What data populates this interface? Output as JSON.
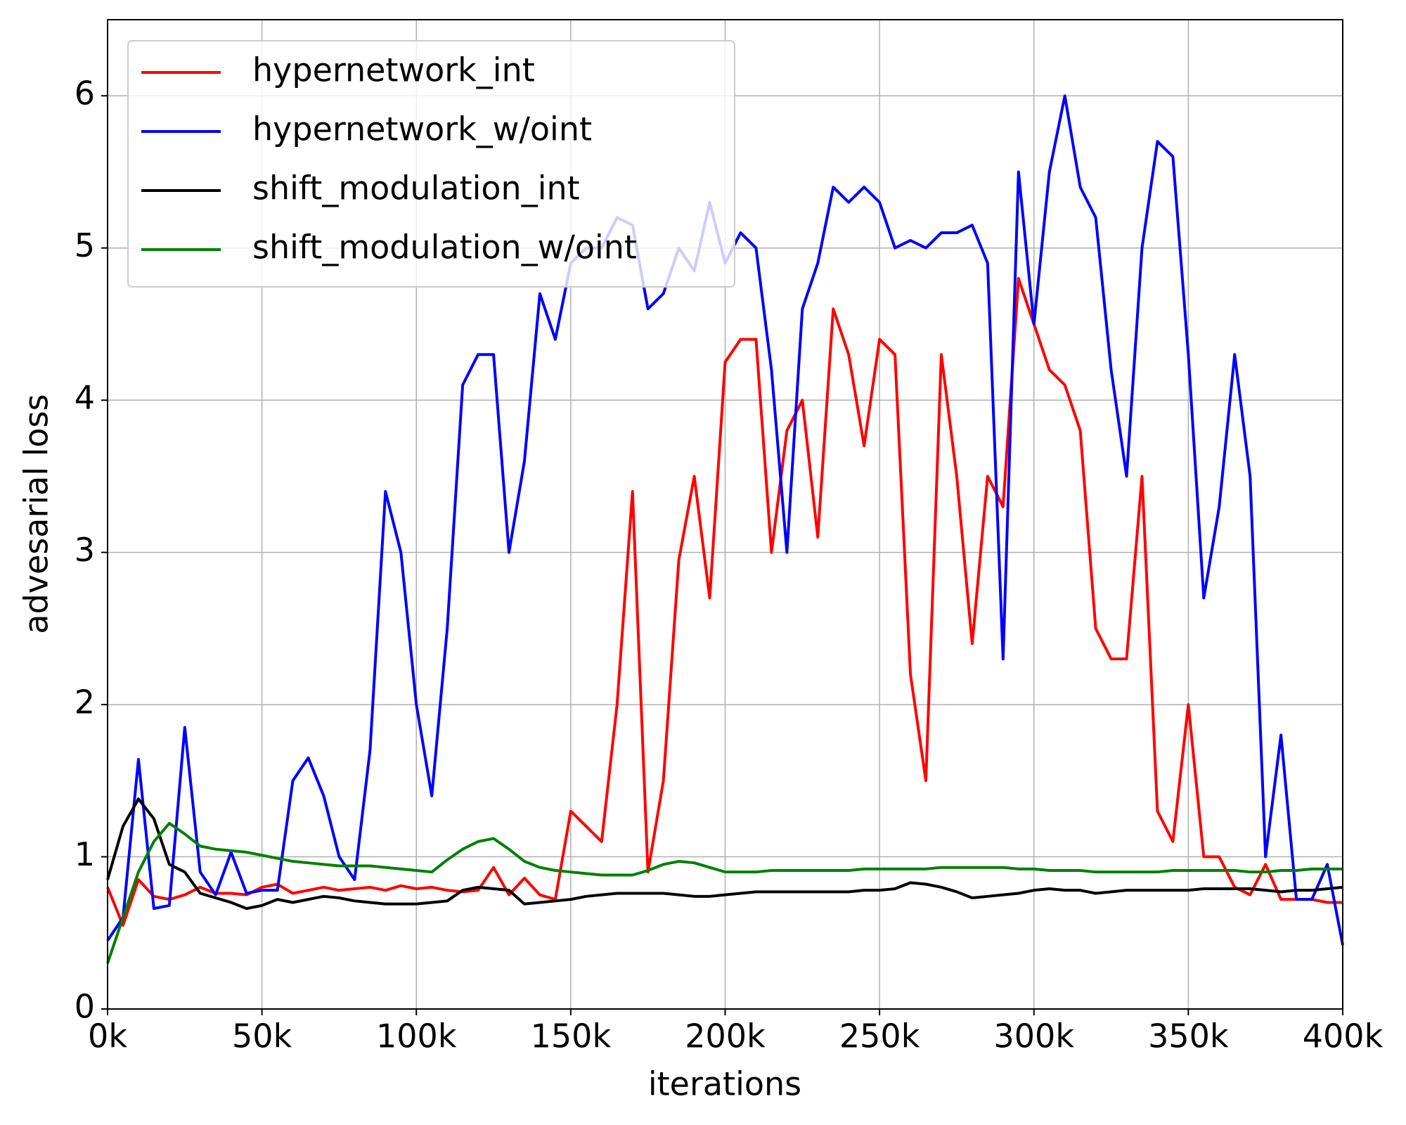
{
  "chart_data": {
    "type": "line",
    "x_label": "iterations",
    "y_label": "advesarial loss",
    "x": [
      0,
      5000,
      10000,
      15000,
      20000,
      25000,
      30000,
      35000,
      40000,
      45000,
      50000,
      55000,
      60000,
      65000,
      70000,
      75000,
      80000,
      85000,
      90000,
      95000,
      100000,
      105000,
      110000,
      115000,
      120000,
      125000,
      130000,
      135000,
      140000,
      145000,
      150000,
      155000,
      160000,
      165000,
      170000,
      175000,
      180000,
      185000,
      190000,
      195000,
      200000,
      205000,
      210000,
      215000,
      220000,
      225000,
      230000,
      235000,
      240000,
      245000,
      250000,
      255000,
      260000,
      265000,
      270000,
      275000,
      280000,
      285000,
      290000,
      295000,
      300000,
      305000,
      310000,
      315000,
      320000,
      325000,
      330000,
      335000,
      340000,
      345000,
      350000,
      355000,
      360000,
      365000,
      370000,
      375000,
      380000,
      385000,
      390000,
      395000,
      400000
    ],
    "series": [
      {
        "name": "hypernetwork_int",
        "color": "#ff0000",
        "values": [
          0.8,
          0.55,
          0.85,
          0.74,
          0.72,
          0.75,
          0.8,
          0.76,
          0.76,
          0.75,
          0.8,
          0.82,
          0.76,
          0.78,
          0.8,
          0.78,
          0.79,
          0.8,
          0.78,
          0.81,
          0.79,
          0.8,
          0.78,
          0.77,
          0.78,
          0.93,
          0.75,
          0.86,
          0.75,
          0.72,
          1.3,
          1.2,
          1.1,
          2.0,
          3.4,
          0.9,
          1.5,
          2.95,
          3.5,
          2.7,
          4.25,
          4.4,
          4.4,
          3.0,
          3.8,
          4.0,
          3.1,
          4.6,
          4.3,
          3.7,
          4.4,
          4.3,
          2.2,
          1.5,
          4.3,
          3.5,
          2.4,
          3.5,
          3.3,
          4.8,
          4.5,
          4.2,
          4.1,
          3.8,
          2.5,
          2.3,
          2.3,
          3.5,
          1.3,
          1.1,
          2.0,
          1.0,
          1.0,
          0.8,
          0.75,
          0.95,
          0.72,
          0.72,
          0.72,
          0.7,
          0.7
        ]
      },
      {
        "name": "hypernetwork_w/oint",
        "color": "#0000ff",
        "values": [
          0.45,
          0.6,
          1.64,
          0.66,
          0.68,
          1.85,
          0.9,
          0.75,
          1.03,
          0.76,
          0.78,
          0.78,
          1.5,
          1.65,
          1.4,
          1.0,
          0.85,
          1.7,
          3.4,
          3.0,
          2.0,
          1.4,
          2.5,
          4.1,
          4.3,
          4.3,
          3.0,
          3.6,
          4.7,
          4.4,
          4.9,
          5.0,
          5.0,
          5.2,
          5.15,
          4.6,
          4.7,
          5.0,
          4.85,
          5.3,
          4.9,
          5.1,
          5.0,
          4.2,
          3.0,
          4.6,
          4.9,
          5.4,
          5.3,
          5.4,
          5.3,
          5.0,
          5.05,
          5.0,
          5.1,
          5.1,
          5.15,
          4.9,
          2.3,
          5.5,
          4.5,
          5.5,
          6.0,
          5.4,
          5.2,
          4.2,
          3.5,
          5.0,
          5.7,
          5.6,
          4.3,
          2.7,
          3.3,
          4.3,
          3.5,
          1.0,
          1.8,
          0.72,
          0.72,
          0.95,
          0.42
        ]
      },
      {
        "name": "shift_modulation_int",
        "color": "#000000",
        "values": [
          0.85,
          1.2,
          1.38,
          1.25,
          0.95,
          0.9,
          0.76,
          0.73,
          0.7,
          0.66,
          0.68,
          0.72,
          0.7,
          0.72,
          0.74,
          0.73,
          0.71,
          0.7,
          0.69,
          0.69,
          0.69,
          0.7,
          0.71,
          0.78,
          0.8,
          0.79,
          0.78,
          0.69,
          0.7,
          0.71,
          0.72,
          0.74,
          0.75,
          0.76,
          0.76,
          0.76,
          0.76,
          0.75,
          0.74,
          0.74,
          0.75,
          0.76,
          0.77,
          0.77,
          0.77,
          0.77,
          0.77,
          0.77,
          0.77,
          0.78,
          0.78,
          0.79,
          0.83,
          0.82,
          0.8,
          0.77,
          0.73,
          0.74,
          0.75,
          0.76,
          0.78,
          0.79,
          0.78,
          0.78,
          0.76,
          0.77,
          0.78,
          0.78,
          0.78,
          0.78,
          0.78,
          0.79,
          0.79,
          0.79,
          0.79,
          0.78,
          0.77,
          0.78,
          0.78,
          0.79,
          0.8
        ]
      },
      {
        "name": "shift_modulation_w/oint",
        "color": "#008000",
        "values": [
          0.3,
          0.6,
          0.9,
          1.1,
          1.22,
          1.15,
          1.07,
          1.05,
          1.04,
          1.03,
          1.01,
          0.99,
          0.97,
          0.96,
          0.95,
          0.94,
          0.94,
          0.94,
          0.93,
          0.92,
          0.91,
          0.9,
          0.98,
          1.05,
          1.1,
          1.12,
          1.05,
          0.97,
          0.93,
          0.91,
          0.9,
          0.89,
          0.88,
          0.88,
          0.88,
          0.91,
          0.95,
          0.97,
          0.96,
          0.93,
          0.9,
          0.9,
          0.9,
          0.91,
          0.91,
          0.91,
          0.91,
          0.91,
          0.91,
          0.92,
          0.92,
          0.92,
          0.92,
          0.92,
          0.93,
          0.93,
          0.93,
          0.93,
          0.93,
          0.92,
          0.92,
          0.91,
          0.91,
          0.91,
          0.9,
          0.9,
          0.9,
          0.9,
          0.9,
          0.91,
          0.91,
          0.91,
          0.91,
          0.91,
          0.9,
          0.9,
          0.91,
          0.91,
          0.92,
          0.92,
          0.92
        ]
      }
    ],
    "xlim": [
      0,
      400000
    ],
    "ylim": [
      0,
      6.5
    ],
    "xticks": [
      {
        "value": 0,
        "label": "0k"
      },
      {
        "value": 50000,
        "label": "50k"
      },
      {
        "value": 100000,
        "label": "100k"
      },
      {
        "value": 150000,
        "label": "150k"
      },
      {
        "value": 200000,
        "label": "200k"
      },
      {
        "value": 250000,
        "label": "250k"
      },
      {
        "value": 300000,
        "label": "300k"
      },
      {
        "value": 350000,
        "label": "350k"
      },
      {
        "value": 400000,
        "label": "400k"
      }
    ],
    "yticks": [
      0,
      1,
      2,
      3,
      4,
      5,
      6
    ],
    "grid": true,
    "legend": "upper left"
  }
}
